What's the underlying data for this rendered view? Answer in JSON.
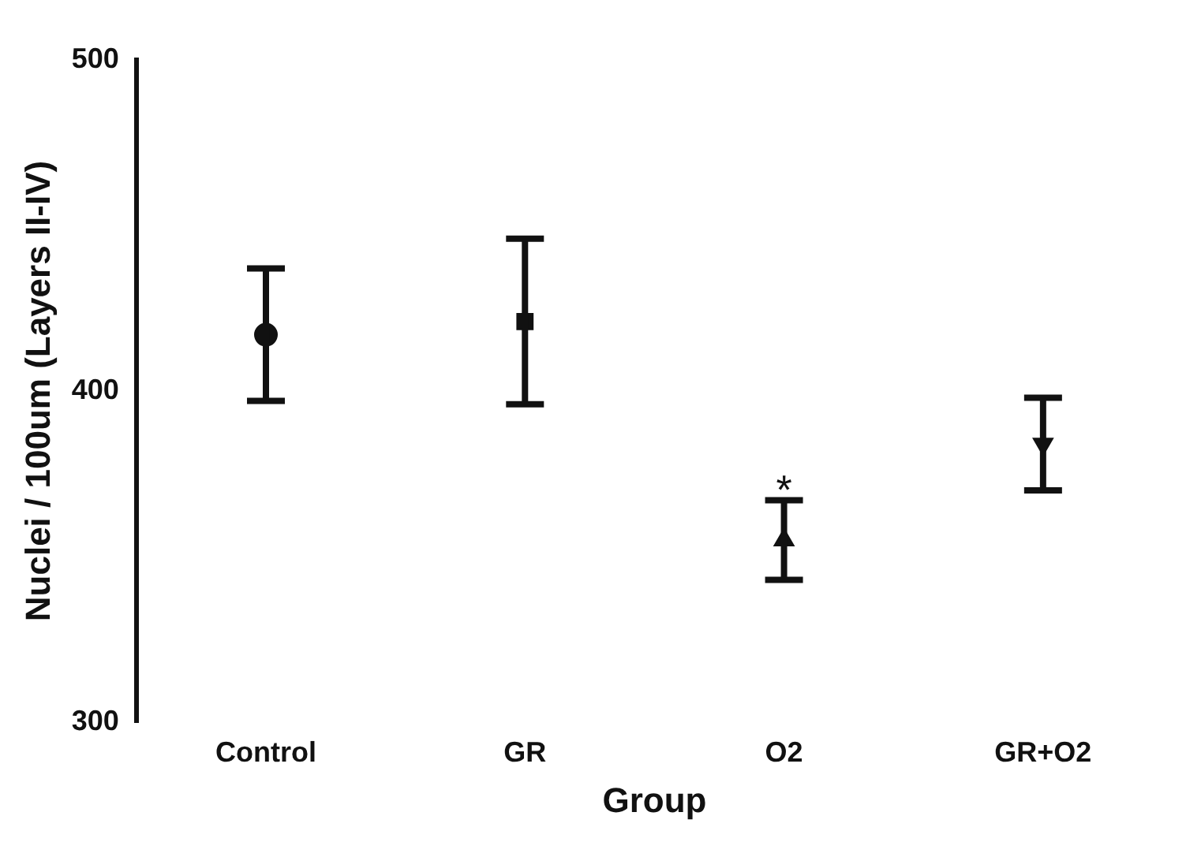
{
  "chart_data": {
    "type": "scatter",
    "xlabel": "Group",
    "ylabel": "Nuclei / 100um (Layers II-IV)",
    "categories": [
      "Control",
      "GR",
      "O2",
      "GR+O2"
    ],
    "series": [
      {
        "color": "#111111",
        "marker": "circle",
        "x": [
          "Control"
        ],
        "values": [
          417
        ],
        "errors": [
          20
        ]
      },
      {
        "color": "#111111",
        "marker": "square",
        "x": [
          "GR"
        ],
        "values": [
          421
        ],
        "errors": [
          25
        ]
      },
      {
        "color": "#111111",
        "marker": "triangle",
        "x": [
          "O2"
        ],
        "values": [
          355
        ],
        "errors": [
          12
        ]
      },
      {
        "color": "#111111",
        "marker": "triangle-down",
        "x": [
          "GR+O2"
        ],
        "values": [
          384
        ],
        "errors": [
          14
        ]
      }
    ],
    "ylim": [
      300,
      500
    ],
    "yticks": [
      300,
      400,
      500
    ],
    "grid": false,
    "legend": false,
    "annotations": [
      {
        "text": "*",
        "x": "O2",
        "y": 367
      }
    ]
  }
}
